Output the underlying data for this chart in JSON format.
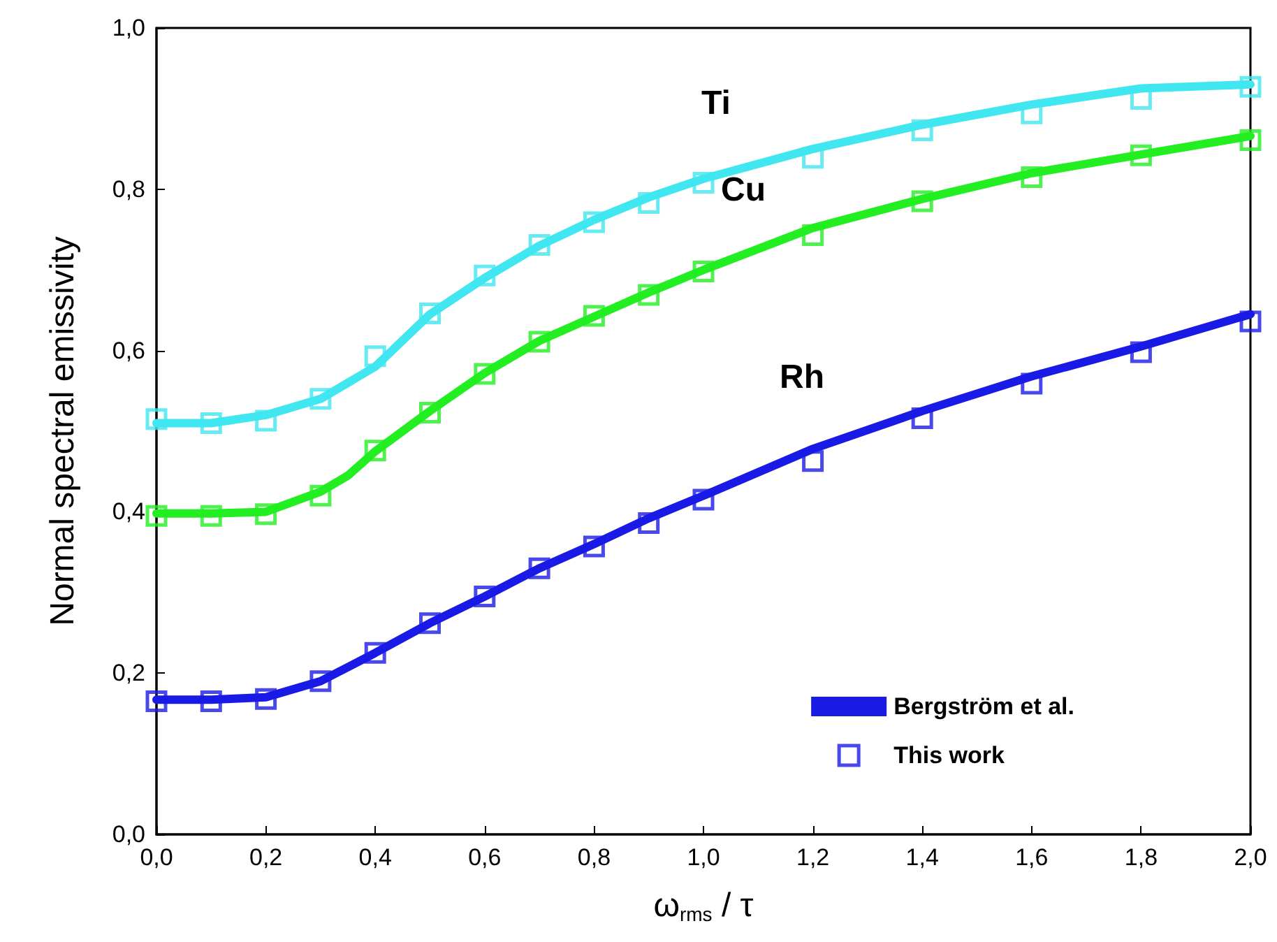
{
  "chart_data": {
    "type": "line",
    "xlabel": "ω$_{rms}$ / τ",
    "ylabel": "Normal spectral emissivity",
    "xlim": [
      0,
      2
    ],
    "ylim": [
      0,
      1
    ],
    "xticks": [
      {
        "value": 0,
        "label": "0,0"
      },
      {
        "value": 0.2,
        "label": "0,2"
      },
      {
        "value": 0.4,
        "label": "0,4"
      },
      {
        "value": 0.6,
        "label": "0,6"
      },
      {
        "value": 0.8,
        "label": "0,8"
      },
      {
        "value": 1,
        "label": "1,0"
      },
      {
        "value": 1.2,
        "label": "1,2"
      },
      {
        "value": 1.4,
        "label": "1,4"
      },
      {
        "value": 1.6,
        "label": "1,6"
      },
      {
        "value": 1.8,
        "label": "1,8"
      },
      {
        "value": 2,
        "label": "2,0"
      }
    ],
    "yticks": [
      {
        "value": 0,
        "label": "0,0"
      },
      {
        "value": 0.2,
        "label": "0,2"
      },
      {
        "value": 0.4,
        "label": "0,4"
      },
      {
        "value": 0.6,
        "label": "0,6"
      },
      {
        "value": 0.8,
        "label": "0,8"
      },
      {
        "value": 1,
        "label": "1,0"
      }
    ],
    "grid": false,
    "legend": "bottom right",
    "line_style": "solid",
    "annotations": [
      "Ti",
      "Cu",
      "Rh"
    ],
    "series": [
      {
        "color": "#40e6f0",
        "marker": "none",
        "x": [
          0,
          0.1,
          0.2,
          0.3,
          0.35,
          0.4,
          0.5,
          0.6,
          0.7,
          0.8,
          0.9,
          1.0,
          1.2,
          1.4,
          1.6,
          1.8,
          2.0
        ],
        "values": [
          0.51,
          0.51,
          0.52,
          0.54,
          0.56,
          0.58,
          0.645,
          0.69,
          0.73,
          0.762,
          0.79,
          0.813,
          0.85,
          0.88,
          0.905,
          0.925,
          0.93
        ]
      },
      {
        "color": "#22ee22",
        "marker": "none",
        "x": [
          0,
          0.1,
          0.2,
          0.3,
          0.35,
          0.4,
          0.5,
          0.6,
          0.7,
          0.8,
          0.9,
          1.0,
          1.2,
          1.4,
          1.6,
          1.8,
          2.0
        ],
        "values": [
          0.398,
          0.398,
          0.4,
          0.425,
          0.445,
          0.475,
          0.525,
          0.572,
          0.612,
          0.642,
          0.672,
          0.7,
          0.752,
          0.788,
          0.82,
          0.843,
          0.866
        ]
      },
      {
        "name": "Bergström et al.",
        "color": "#1a1ae6",
        "marker": "none",
        "x": [
          0,
          0.1,
          0.2,
          0.3,
          0.4,
          0.5,
          0.6,
          0.7,
          0.8,
          0.9,
          1.0,
          1.2,
          1.4,
          1.6,
          1.8,
          2.0
        ],
        "values": [
          0.167,
          0.167,
          0.17,
          0.19,
          0.225,
          0.262,
          0.295,
          0.33,
          0.36,
          0.392,
          0.42,
          0.478,
          0.525,
          0.568,
          0.605,
          0.645
        ]
      },
      {
        "type": "scatter",
        "color": "#40e6f0",
        "marker": "square",
        "x": [
          0,
          0.1,
          0.2,
          0.3,
          0.4,
          0.5,
          0.6,
          0.7,
          0.8,
          0.9,
          1.0,
          1.2,
          1.4,
          1.6,
          1.8,
          2.0
        ],
        "values": [
          0.515,
          0.51,
          0.513,
          0.54,
          0.593,
          0.646,
          0.693,
          0.731,
          0.759,
          0.783,
          0.808,
          0.839,
          0.873,
          0.894,
          0.912,
          0.927
        ]
      },
      {
        "type": "scatter",
        "color": "#22ee22",
        "marker": "square",
        "x": [
          0,
          0.1,
          0.2,
          0.3,
          0.4,
          0.5,
          0.6,
          0.7,
          0.8,
          0.9,
          1.0,
          1.2,
          1.4,
          1.6,
          1.8,
          2.0
        ],
        "values": [
          0.395,
          0.395,
          0.397,
          0.42,
          0.476,
          0.523,
          0.571,
          0.611,
          0.643,
          0.669,
          0.698,
          0.743,
          0.785,
          0.815,
          0.842,
          0.861
        ]
      },
      {
        "type": "scatter",
        "name": "This work",
        "color": "#1a1ae6",
        "marker": "square",
        "x": [
          0,
          0.1,
          0.2,
          0.3,
          0.4,
          0.5,
          0.6,
          0.7,
          0.8,
          0.9,
          1.0,
          1.2,
          1.4,
          1.6,
          1.8,
          2.0
        ],
        "values": [
          0.165,
          0.165,
          0.168,
          0.19,
          0.225,
          0.262,
          0.295,
          0.33,
          0.357,
          0.386,
          0.415,
          0.463,
          0.516,
          0.559,
          0.598,
          0.636
        ]
      }
    ]
  }
}
